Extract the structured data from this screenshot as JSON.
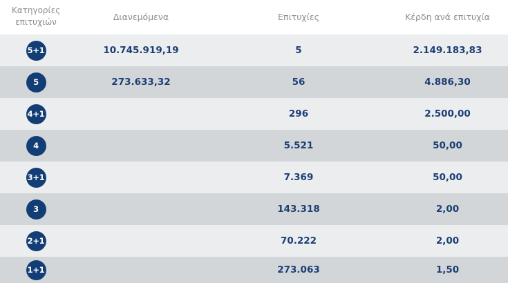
{
  "header": {
    "category_line1": "Κατηγορίες",
    "category_line2": "επιτυχιών",
    "distributed": "Διανεμόμενα",
    "winners": "Επιτυχίες",
    "prize_per_winner": "Κέρδη ανά επιτυχία"
  },
  "colors": {
    "badge": "#123e75",
    "value_text": "#1b3f73",
    "row_light": "#ebedef",
    "row_dark": "#d3d6d9"
  },
  "rows": [
    {
      "category": "5+1",
      "distributed": "10.745.919,19",
      "winners": "5",
      "prize": "2.149.183,83"
    },
    {
      "category": "5",
      "distributed": "273.633,32",
      "winners": "56",
      "prize": "4.886,30"
    },
    {
      "category": "4+1",
      "distributed": "",
      "winners": "296",
      "prize": "2.500,00"
    },
    {
      "category": "4",
      "distributed": "",
      "winners": "5.521",
      "prize": "50,00"
    },
    {
      "category": "3+1",
      "distributed": "",
      "winners": "7.369",
      "prize": "50,00"
    },
    {
      "category": "3",
      "distributed": "",
      "winners": "143.318",
      "prize": "2,00"
    },
    {
      "category": "2+1",
      "distributed": "",
      "winners": "70.222",
      "prize": "2,00"
    },
    {
      "category": "1+1",
      "distributed": "",
      "winners": "273.063",
      "prize": "1,50"
    }
  ]
}
